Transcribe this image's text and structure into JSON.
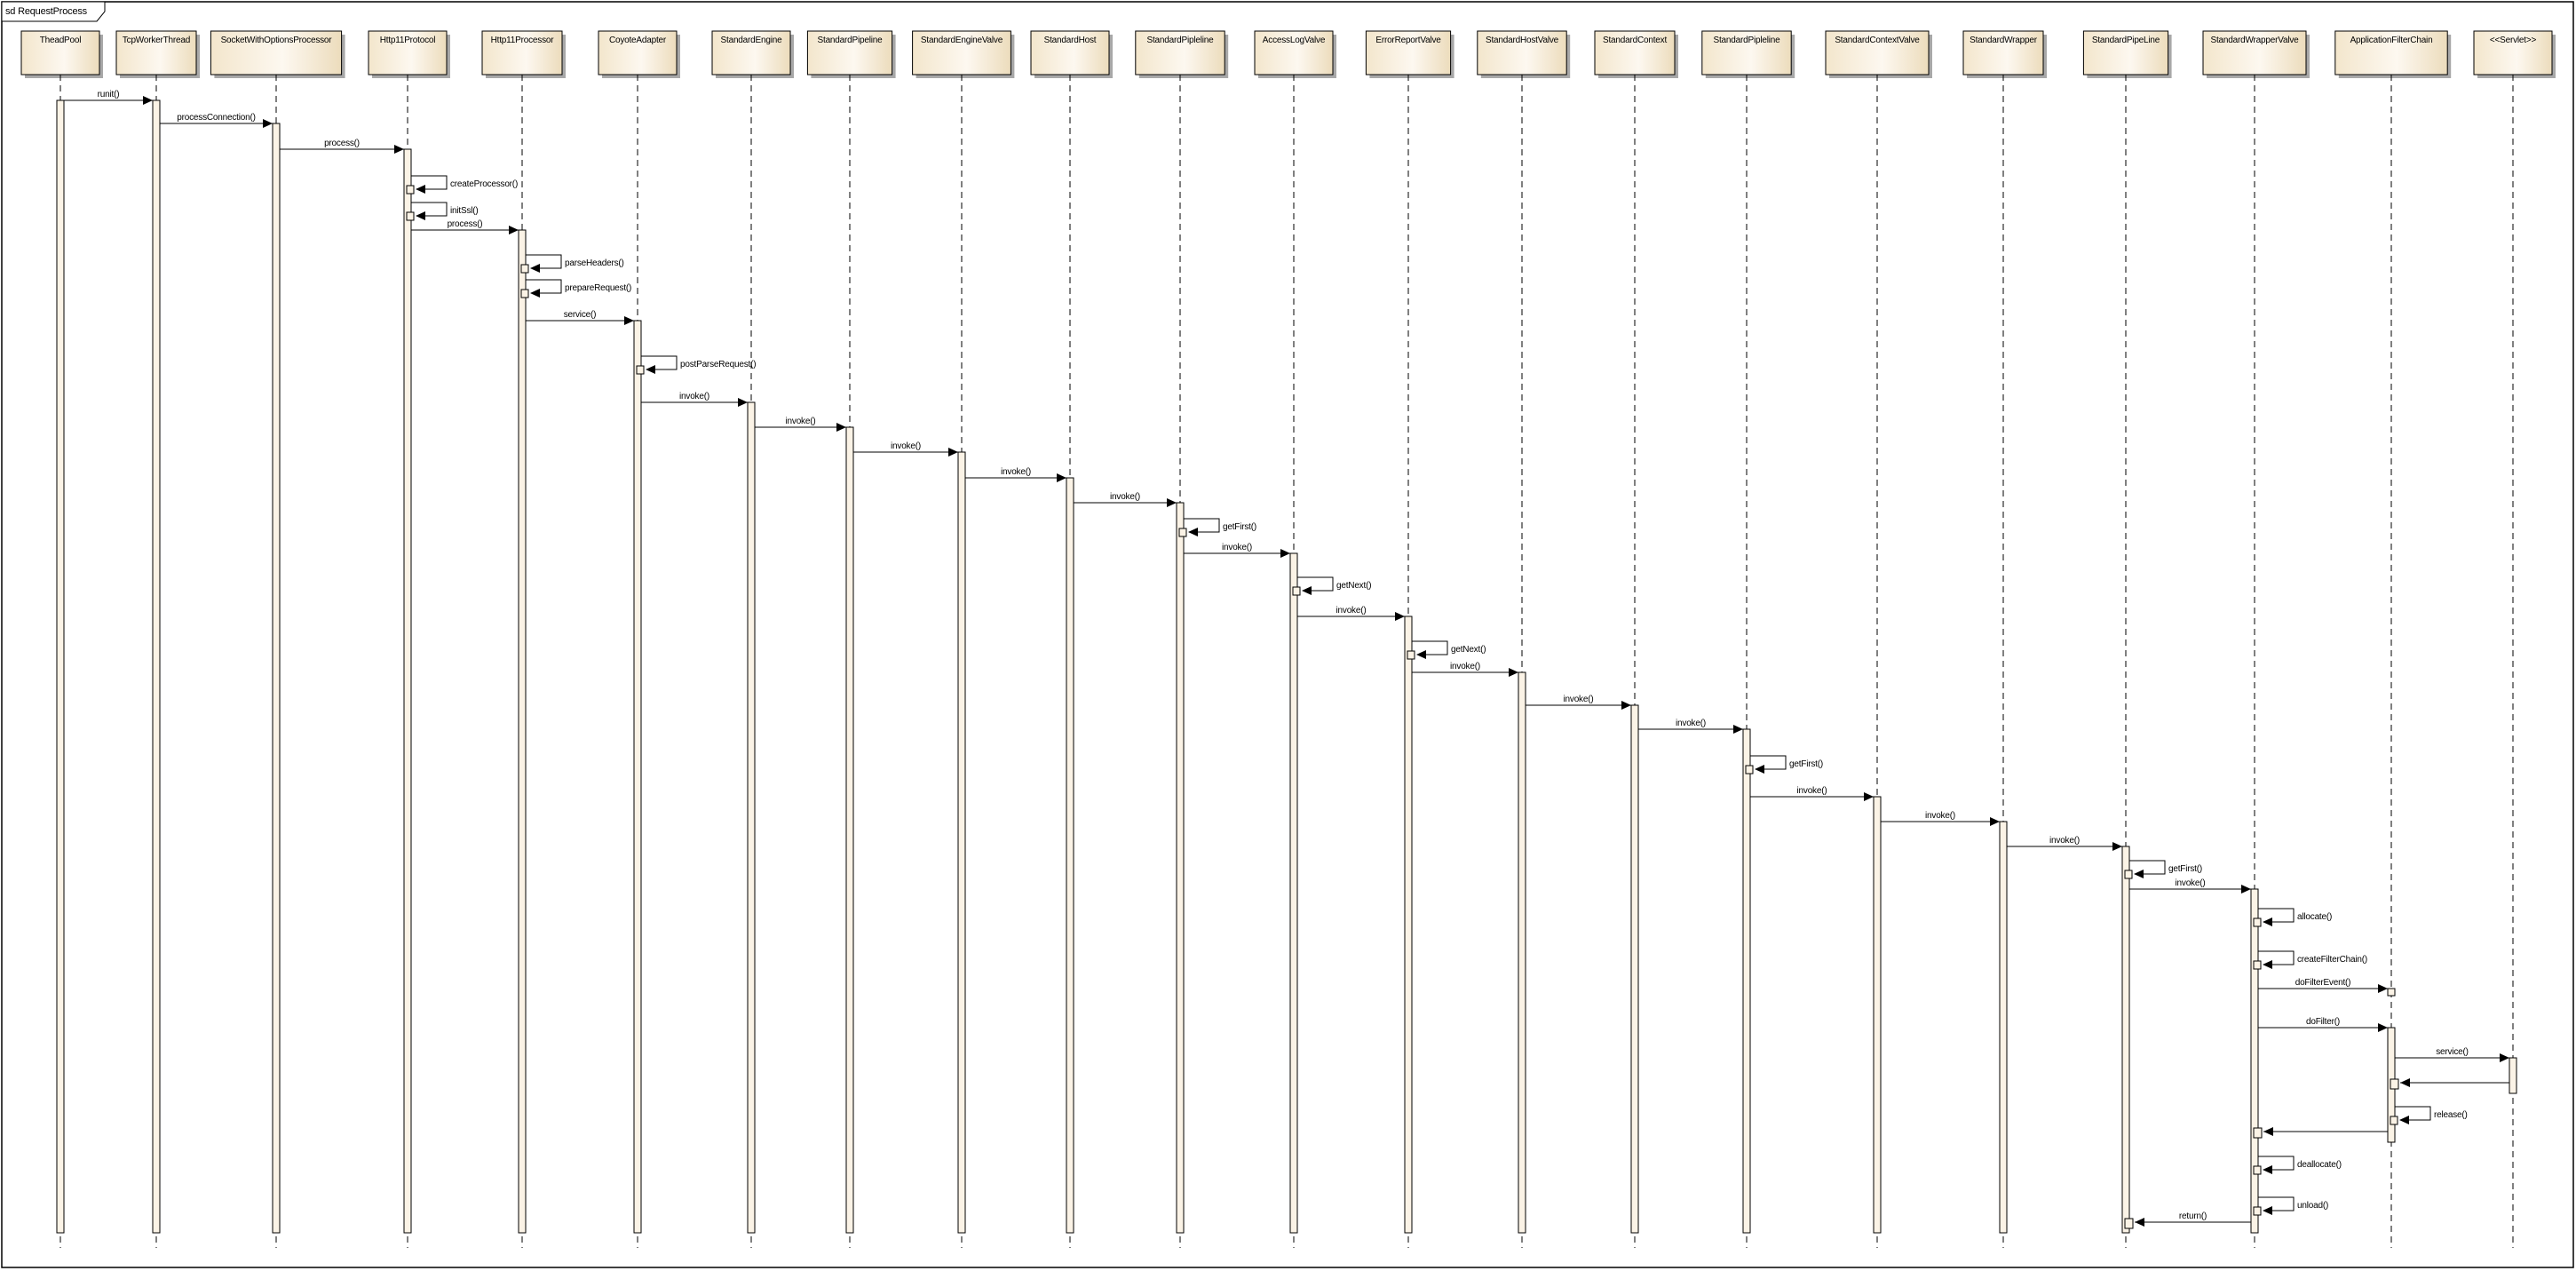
{
  "diagram": {
    "frame_label": "sd RequestProcess",
    "colors": {
      "box_fill_light": "#fdf8f0",
      "box_fill_dark": "#efe0c4",
      "activation_fill": "#fbf3e6",
      "line": "#000000",
      "shadow": "#a8a8a8"
    },
    "lifelines": [
      "TheadPool",
      "TcpWorkerThread",
      "SocketWithOptionsProcessor",
      "Http11Protocol",
      "Http11Processor",
      "CoyoteAdapter",
      "StandardEngine",
      "StandardPipeline",
      "StandardEngineValve",
      "StandardHost",
      "StandardPipleline",
      "AccessLogValve",
      "ErrorReportValve",
      "StandardHostValve",
      "StandardContext",
      "StandardPipleline",
      "StandardContextValve",
      "StandardWrapper",
      "StandardPipeLine",
      "StandardWrapperValve",
      "ApplicationFilterChain",
      "<<Servlet>>"
    ],
    "messages": [
      {
        "from": 0,
        "to": 1,
        "label": "runit()"
      },
      {
        "from": 1,
        "to": 2,
        "label": "processConnection()"
      },
      {
        "from": 2,
        "to": 3,
        "label": "process()"
      },
      {
        "from": 3,
        "to": 3,
        "label": "createProcessor()"
      },
      {
        "from": 3,
        "to": 3,
        "label": "initSsl()"
      },
      {
        "from": 3,
        "to": 4,
        "label": "process()"
      },
      {
        "from": 4,
        "to": 4,
        "label": "parseHeaders()"
      },
      {
        "from": 4,
        "to": 4,
        "label": "prepareRequest()"
      },
      {
        "from": 4,
        "to": 5,
        "label": "service()"
      },
      {
        "from": 5,
        "to": 5,
        "label": "postParseRequest()"
      },
      {
        "from": 5,
        "to": 6,
        "label": "invoke()"
      },
      {
        "from": 6,
        "to": 7,
        "label": "invoke()"
      },
      {
        "from": 7,
        "to": 8,
        "label": "invoke()"
      },
      {
        "from": 8,
        "to": 9,
        "label": "invoke()"
      },
      {
        "from": 9,
        "to": 10,
        "label": "invoke()"
      },
      {
        "from": 10,
        "to": 10,
        "label": "getFirst()"
      },
      {
        "from": 10,
        "to": 11,
        "label": "invoke()"
      },
      {
        "from": 11,
        "to": 11,
        "label": "getNext()"
      },
      {
        "from": 11,
        "to": 12,
        "label": "invoke()"
      },
      {
        "from": 12,
        "to": 12,
        "label": "getNext()"
      },
      {
        "from": 12,
        "to": 13,
        "label": "invoke()"
      },
      {
        "from": 13,
        "to": 14,
        "label": "invoke()"
      },
      {
        "from": 14,
        "to": 15,
        "label": "invoke()"
      },
      {
        "from": 15,
        "to": 15,
        "label": "getFirst()"
      },
      {
        "from": 15,
        "to": 16,
        "label": "invoke()"
      },
      {
        "from": 16,
        "to": 17,
        "label": "invoke()"
      },
      {
        "from": 17,
        "to": 18,
        "label": "invoke()"
      },
      {
        "from": 18,
        "to": 18,
        "label": "getFirst()"
      },
      {
        "from": 18,
        "to": 19,
        "label": "invoke()"
      },
      {
        "from": 19,
        "to": 19,
        "label": "allocate()"
      },
      {
        "from": 19,
        "to": 19,
        "label": "createFilterChain()"
      },
      {
        "from": 19,
        "to": 20,
        "label": "doFilterEvent()"
      },
      {
        "from": 19,
        "to": 20,
        "label": "doFilter()"
      },
      {
        "from": 20,
        "to": 21,
        "label": "service()"
      },
      {
        "from": 21,
        "to": 20,
        "label": ""
      },
      {
        "from": 20,
        "to": 20,
        "label": "release()"
      },
      {
        "from": 20,
        "to": 19,
        "label": ""
      },
      {
        "from": 19,
        "to": 19,
        "label": "deallocate()"
      },
      {
        "from": 19,
        "to": 19,
        "label": "unload()"
      },
      {
        "from": 19,
        "to": 18,
        "label": "return()"
      }
    ]
  }
}
